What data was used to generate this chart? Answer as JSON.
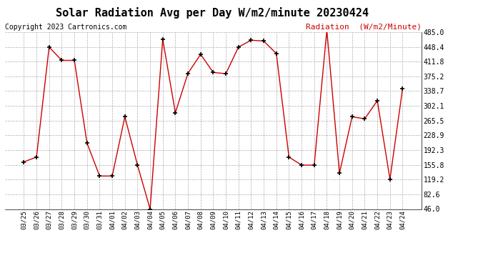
{
  "title": "Solar Radiation Avg per Day W/m2/minute 20230424",
  "copyright": "Copyright 2023 Cartronics.com",
  "legend_label": "Radiation  (W/m2/Minute)",
  "dates": [
    "03/25",
    "03/26",
    "03/27",
    "03/28",
    "03/29",
    "03/30",
    "03/31",
    "04/01",
    "04/02",
    "04/03",
    "04/04",
    "04/05",
    "04/06",
    "04/07",
    "04/08",
    "04/09",
    "04/10",
    "04/11",
    "04/12",
    "04/13",
    "04/14",
    "04/15",
    "04/16",
    "04/17",
    "04/18",
    "04/19",
    "04/20",
    "04/21",
    "04/22",
    "04/23",
    "04/24"
  ],
  "values": [
    163,
    175,
    448,
    415,
    415,
    210,
    128,
    128,
    275,
    155,
    46,
    468,
    285,
    383,
    430,
    385,
    382,
    448,
    465,
    463,
    432,
    175,
    155,
    155,
    490,
    135,
    275,
    270,
    315,
    120,
    345
  ],
  "line_color": "#cc0000",
  "marker_color": "#000000",
  "bg_color": "#ffffff",
  "grid_color": "#999999",
  "ylim_min": 46.0,
  "ylim_max": 485.0,
  "yticks": [
    46.0,
    82.6,
    119.2,
    155.8,
    192.3,
    228.9,
    265.5,
    302.1,
    338.7,
    375.2,
    411.8,
    448.4,
    485.0
  ],
  "title_fontsize": 11,
  "copyright_fontsize": 7,
  "legend_fontsize": 8,
  "tick_fontsize": 7,
  "xtick_fontsize": 6.5
}
